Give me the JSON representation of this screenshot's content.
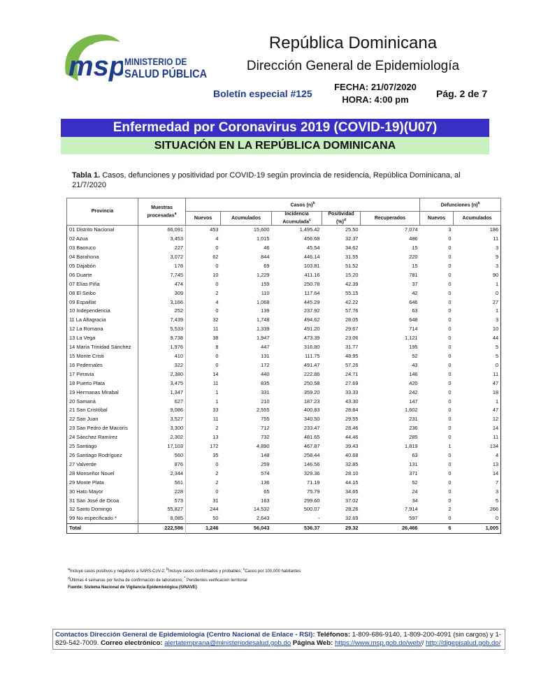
{
  "header": {
    "logo_text": "msp",
    "ministry_line1": "MINISTERIO DE",
    "ministry_line2": "SALUD PÚBLICA",
    "title": "República Dominicana",
    "subtitle": "Dirección General de Epidemiología",
    "bulletin": "Boletín especial #125",
    "fecha": "FECHA: 21/07/2020",
    "hora": "HORA: 4:00 pm",
    "page": "Pág. 2 de 7"
  },
  "banner": {
    "title": "Enfermedad por Coronavirus 2019 (COVID-19)(U07)",
    "subtitle": "SITUACIÓN EN LA REPÚBLICA DOMINICANA"
  },
  "caption": {
    "label": "Tabla 1.",
    "text": " Casos, defunciones y positividad por COVID-19 según provincia de residencia, República Dominicana, al 21/7/2020"
  },
  "table": {
    "group_headers": [
      {
        "text": "Provincia"
      },
      {
        "text": "Muestras procesadas",
        "sup": "a"
      },
      {
        "text": "Casos (n)",
        "sup": "b"
      },
      {
        "text": "Defunciones (n)",
        "sup": "b"
      }
    ],
    "sub_headers": [
      {
        "text": "Nuevos"
      },
      {
        "text": "Acumulados"
      },
      {
        "text": "Incidencia Acumulada",
        "sup": "c"
      },
      {
        "text": "Positividad (%)",
        "sup": "d"
      },
      {
        "text": "Recuperados"
      },
      {
        "text": "Nuevos"
      },
      {
        "text": "Acumulados"
      }
    ],
    "rows": [
      [
        "01 Distrito Nacional",
        "66,091",
        "453",
        "15,600",
        "1,495.42",
        "25.50",
        "7,074",
        "3",
        "186"
      ],
      [
        "02 Azua",
        "3,453",
        "4",
        "1,015",
        "456.68",
        "32.37",
        "486",
        "0",
        "11"
      ],
      [
        "03 Baoruco",
        "227",
        "0",
        "46",
        "45.54",
        "34.62",
        "15",
        "0",
        "3"
      ],
      [
        "04 Barahona",
        "3,072",
        "62",
        "844",
        "446.14",
        "31.55",
        "220",
        "0",
        "9"
      ],
      [
        "05 Dajabón",
        "178",
        "0",
        "69",
        "103.81",
        "51.52",
        "15",
        "0",
        "3"
      ],
      [
        "06 Duarte",
        "7,745",
        "10",
        "1,229",
        "411.16",
        "15.20",
        "781",
        "0",
        "90"
      ],
      [
        "07 Elías Piña",
        "474",
        "0",
        "159",
        "250.78",
        "42.39",
        "37",
        "0",
        "1"
      ],
      [
        "08 El Seibo",
        "309",
        "2",
        "110",
        "117.64",
        "55.15",
        "42",
        "0",
        "0"
      ],
      [
        "09 Espaillat",
        "3,166",
        "4",
        "1,068",
        "445.29",
        "42.22",
        "646",
        "0",
        "27"
      ],
      [
        "10 Independencia",
        "252",
        "0",
        "139",
        "237.92",
        "57.76",
        "63",
        "0",
        "1"
      ],
      [
        "11 La Altagracia",
        "7,439",
        "32",
        "1,748",
        "494.62",
        "28.05",
        "648",
        "0",
        "3"
      ],
      [
        "12 La Romana",
        "5,533",
        "11",
        "1,339",
        "491.20",
        "29.67",
        "714",
        "0",
        "10"
      ],
      [
        "13 La Vega",
        "9,738",
        "38",
        "1,947",
        "473.39",
        "23.06",
        "1,121",
        "0",
        "44"
      ],
      [
        "14 María Trinidad Sánchez",
        "1,976",
        "8",
        "447",
        "316.80",
        "31.77",
        "195",
        "0",
        "5"
      ],
      [
        "15 Monte Cristi",
        "410",
        "0",
        "131",
        "111.75",
        "48.95",
        "52",
        "0",
        "5"
      ],
      [
        "16 Pedernales",
        "322",
        "0",
        "172",
        "491.47",
        "57.26",
        "43",
        "0",
        "0"
      ],
      [
        "17 Peravia",
        "2,380",
        "14",
        "440",
        "222.86",
        "24.71",
        "146",
        "0",
        "11"
      ],
      [
        "18 Puerto Plata",
        "3,475",
        "11",
        "835",
        "250.58",
        "27.69",
        "420",
        "0",
        "47"
      ],
      [
        "19 Hermanas Mirabal",
        "1,347",
        "1",
        "331",
        "359.20",
        "33.33",
        "242",
        "0",
        "18"
      ],
      [
        "20 Samaná",
        "627",
        "1",
        "210",
        "187.23",
        "43.30",
        "147",
        "0",
        "1"
      ],
      [
        "21 San Cristóbal",
        "9,086",
        "33",
        "2,555",
        "400.83",
        "28.84",
        "1,602",
        "0",
        "47"
      ],
      [
        "22 San Juan",
        "3,527",
        "11",
        "755",
        "340.50",
        "29.55",
        "231",
        "0",
        "12"
      ],
      [
        "23 San Pedro de Macorís",
        "3,300",
        "2",
        "712",
        "233.47",
        "28.46",
        "236",
        "0",
        "14"
      ],
      [
        "24 Sánchez Ramírez",
        "2,302",
        "13",
        "732",
        "481.65",
        "44.46",
        "285",
        "0",
        "11"
      ],
      [
        "25 Santiago",
        "17,103",
        "172",
        "4,890",
        "467.87",
        "39.43",
        "1,819",
        "1",
        "134"
      ],
      [
        "26 Santiago Rodríguez",
        "560",
        "35",
        "148",
        "258.44",
        "40.68",
        "63",
        "0",
        "4"
      ],
      [
        "27 Valverde",
        "876",
        "0",
        "259",
        "146.56",
        "32.85",
        "131",
        "0",
        "13"
      ],
      [
        "28 Monseñor Nouel",
        "2,344",
        "2",
        "574",
        "329.36",
        "28.10",
        "371",
        "0",
        "14"
      ],
      [
        "29 Monte Plata",
        "561",
        "2",
        "136",
        "71.19",
        "44.15",
        "52",
        "0",
        "7"
      ],
      [
        "30 Hato Mayor",
        "228",
        "0",
        "65",
        "75.79",
        "34.65",
        "24",
        "0",
        "3"
      ],
      [
        "31 San José de Ocoa",
        "573",
        "31",
        "163",
        "299.60",
        "37.02",
        "34",
        "0",
        "5"
      ],
      [
        "32 Santo Domingo",
        "55,827",
        "244",
        "14,532",
        "500.07",
        "28.26",
        "7,914",
        "2",
        "266"
      ],
      [
        "99 No especificado *",
        "8,085",
        "50",
        "2,643",
        "-",
        "32.69",
        "597",
        "0",
        "0"
      ]
    ],
    "total": [
      "Total",
      "222,586",
      "1,246",
      "56,043",
      "536.37",
      "29.32",
      "26,466",
      "6",
      "1,005"
    ]
  },
  "footnotes": [
    [
      {
        "sup": "a",
        "text": "Incluye casos positivos y negativos a SARS-CoV-2; "
      },
      {
        "sup": "b",
        "text": "Incluye casos confirmados y probables; "
      },
      {
        "sup": "c",
        "text": "Casos por 100,000 habitantes"
      }
    ],
    [
      {
        "sup": "d",
        "text": "Últimas 4 semanas por fecha de confirmación de laboratorio; "
      },
      {
        "sup": "*",
        "text": " Pendientes verificacion territorial"
      }
    ],
    [
      {
        "text": "Fuente: Sistema Nacional de Vigilancia Epidemiológica (SINAVE)"
      }
    ]
  ],
  "footer": [
    {
      "text": "Contactos Dirección General de Epidemiología (Centro Nacional de Enlace - RSI):",
      "bold": true
    },
    {
      "text": " Teléfonos:",
      "bold": true
    },
    {
      "text": " 1-809-686-9140, 1-809-200-4091 (sin cargos) y 1-829-542-7009.  "
    },
    {
      "text": "Correo electrónico:",
      "bold": true
    },
    {
      "text": " "
    },
    {
      "text": "alertatemprana@ministeriodesalud.gob.do",
      "link": true
    },
    {
      "text": " "
    },
    {
      "text": "Página Web:",
      "bold": true
    },
    {
      "text": " "
    },
    {
      "text": "https://www.msp.gob.do/web/",
      "link": true
    },
    {
      "text": "/  "
    },
    {
      "text": "http://digepisalud.gob.do/",
      "link": true
    }
  ]
}
